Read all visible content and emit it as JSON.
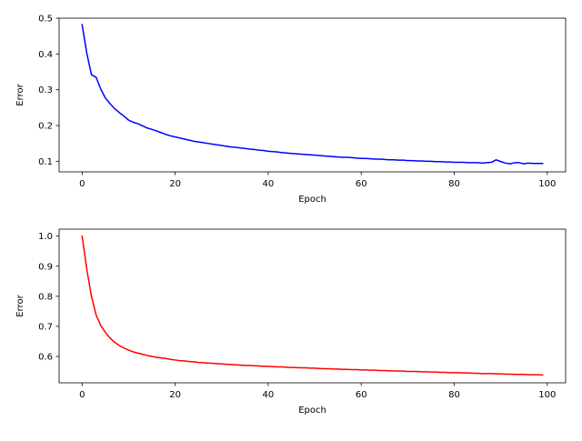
{
  "chart_data": [
    {
      "type": "line",
      "xlabel": "Epoch",
      "ylabel": "Error",
      "xlim": [
        -4.95,
        103.95
      ],
      "ylim": [
        0.0704,
        0.5
      ],
      "xticks": [
        0,
        20,
        40,
        60,
        80,
        100
      ],
      "xtick_labels": [
        "0",
        "20",
        "40",
        "60",
        "80",
        "100"
      ],
      "yticks": [
        0.1,
        0.2,
        0.3,
        0.4,
        0.5
      ],
      "ytick_labels": [
        "0.1",
        "0.2",
        "0.3",
        "0.4",
        "0.5"
      ],
      "grid": false,
      "series": [
        {
          "color": "#0000ff",
          "x": [
            0,
            1,
            2,
            3,
            4,
            5,
            6,
            7,
            8,
            9,
            10,
            11,
            12,
            13,
            14,
            15,
            16,
            17,
            18,
            19,
            20,
            21,
            22,
            23,
            24,
            25,
            26,
            27,
            28,
            29,
            30,
            31,
            32,
            33,
            34,
            35,
            36,
            37,
            38,
            39,
            40,
            41,
            42,
            43,
            44,
            45,
            46,
            47,
            48,
            49,
            50,
            51,
            52,
            53,
            54,
            55,
            56,
            57,
            58,
            59,
            60,
            61,
            62,
            63,
            64,
            65,
            66,
            67,
            68,
            69,
            70,
            71,
            72,
            73,
            74,
            75,
            76,
            77,
            78,
            79,
            80,
            81,
            82,
            83,
            84,
            85,
            86,
            87,
            88,
            89,
            90,
            91,
            92,
            93,
            94,
            95,
            96,
            97,
            98,
            99
          ],
          "values": [
            0.482,
            0.402,
            0.342,
            0.335,
            0.302,
            0.277,
            0.261,
            0.247,
            0.236,
            0.226,
            0.215,
            0.209,
            0.205,
            0.199,
            0.193,
            0.189,
            0.185,
            0.18,
            0.175,
            0.171,
            0.168,
            0.165,
            0.162,
            0.159,
            0.156,
            0.154,
            0.152,
            0.15,
            0.148,
            0.146,
            0.144,
            0.142,
            0.14,
            0.139,
            0.137,
            0.136,
            0.134,
            0.133,
            0.131,
            0.13,
            0.128,
            0.127,
            0.126,
            0.124,
            0.123,
            0.122,
            0.121,
            0.12,
            0.119,
            0.118,
            0.117,
            0.116,
            0.115,
            0.114,
            0.113,
            0.112,
            0.111,
            0.111,
            0.11,
            0.109,
            0.108,
            0.108,
            0.107,
            0.106,
            0.106,
            0.105,
            0.104,
            0.104,
            0.103,
            0.103,
            0.102,
            0.102,
            0.101,
            0.101,
            0.1,
            0.1,
            0.099,
            0.099,
            0.098,
            0.098,
            0.097,
            0.097,
            0.097,
            0.096,
            0.096,
            0.096,
            0.095,
            0.096,
            0.097,
            0.104,
            0.099,
            0.095,
            0.093,
            0.096,
            0.096,
            0.093,
            0.095,
            0.094,
            0.094,
            0.094
          ]
        }
      ]
    },
    {
      "type": "line",
      "xlabel": "Epoch",
      "ylabel": "Error",
      "xlim": [
        -4.95,
        103.95
      ],
      "ylim": [
        0.5122,
        1.0234
      ],
      "xticks": [
        0,
        20,
        40,
        60,
        80,
        100
      ],
      "xtick_labels": [
        "0",
        "20",
        "40",
        "60",
        "80",
        "100"
      ],
      "yticks": [
        0.6,
        0.7,
        0.8,
        0.9,
        1.0
      ],
      "ytick_labels": [
        "0.6",
        "0.7",
        "0.8",
        "0.9",
        "1.0"
      ],
      "grid": false,
      "series": [
        {
          "color": "#ff0000",
          "x": [
            0,
            1,
            2,
            3,
            4,
            5,
            6,
            7,
            8,
            9,
            10,
            11,
            12,
            13,
            14,
            15,
            16,
            17,
            18,
            19,
            20,
            21,
            22,
            23,
            24,
            25,
            26,
            27,
            28,
            29,
            30,
            31,
            32,
            33,
            34,
            35,
            36,
            37,
            38,
            39,
            40,
            41,
            42,
            43,
            44,
            45,
            46,
            47,
            48,
            49,
            50,
            51,
            52,
            53,
            54,
            55,
            56,
            57,
            58,
            59,
            60,
            61,
            62,
            63,
            64,
            65,
            66,
            67,
            68,
            69,
            70,
            71,
            72,
            73,
            74,
            75,
            76,
            77,
            78,
            79,
            80,
            81,
            82,
            83,
            84,
            85,
            86,
            87,
            88,
            89,
            90,
            91,
            92,
            93,
            94,
            95,
            96,
            97,
            98,
            99
          ],
          "values": [
            1.0,
            0.89,
            0.8,
            0.738,
            0.703,
            0.68,
            0.661,
            0.647,
            0.636,
            0.628,
            0.621,
            0.615,
            0.611,
            0.607,
            0.603,
            0.6,
            0.597,
            0.595,
            0.593,
            0.59,
            0.588,
            0.586,
            0.585,
            0.583,
            0.582,
            0.58,
            0.579,
            0.578,
            0.577,
            0.576,
            0.575,
            0.574,
            0.573,
            0.572,
            0.571,
            0.57,
            0.57,
            0.569,
            0.568,
            0.567,
            0.567,
            0.566,
            0.565,
            0.565,
            0.564,
            0.563,
            0.563,
            0.562,
            0.562,
            0.561,
            0.561,
            0.56,
            0.559,
            0.559,
            0.558,
            0.558,
            0.557,
            0.557,
            0.556,
            0.556,
            0.555,
            0.555,
            0.554,
            0.554,
            0.553,
            0.553,
            0.552,
            0.552,
            0.551,
            0.551,
            0.55,
            0.55,
            0.55,
            0.549,
            0.549,
            0.548,
            0.548,
            0.547,
            0.547,
            0.546,
            0.546,
            0.546,
            0.545,
            0.545,
            0.544,
            0.544,
            0.543,
            0.543,
            0.543,
            0.542,
            0.542,
            0.541,
            0.541,
            0.54,
            0.54,
            0.54,
            0.539,
            0.539,
            0.539,
            0.538
          ]
        }
      ]
    }
  ]
}
